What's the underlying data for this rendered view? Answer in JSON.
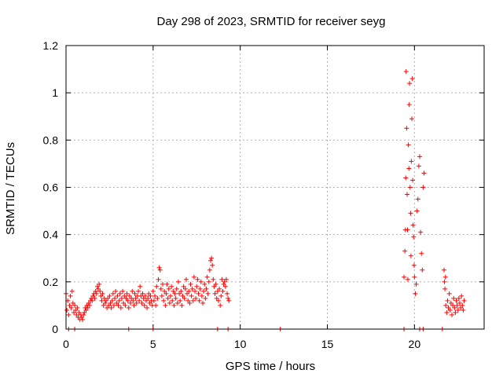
{
  "chart_data": {
    "type": "scatter",
    "title": "Day 298 of 2023, SRMTID for receiver seyg",
    "xlabel": "GPS time / hours",
    "ylabel": "SRMTID / TECUs",
    "xlim": [
      0,
      24
    ],
    "ylim": [
      0,
      1.2
    ],
    "x_ticks": [
      0,
      5,
      10,
      15,
      20
    ],
    "x_tick_labels": [
      "0",
      "5",
      "10",
      "15",
      "20"
    ],
    "y_ticks": [
      0,
      0.2,
      0.4,
      0.6,
      0.8,
      1.0,
      1.2
    ],
    "y_tick_labels": [
      "0",
      "0.2",
      "0.4",
      "0.6",
      "0.8",
      "1",
      "1.2"
    ],
    "grid": true,
    "marker": "+",
    "color": "#ff0000",
    "series": [
      {
        "name": "SRMTID",
        "points": [
          [
            0.0,
            0.15
          ],
          [
            0.05,
            0.08
          ],
          [
            0.1,
            0.12
          ],
          [
            0.15,
            0.06
          ],
          [
            0.2,
            0.1
          ],
          [
            0.25,
            0.14
          ],
          [
            0.3,
            0.09
          ],
          [
            0.35,
            0.16
          ],
          [
            0.4,
            0.11
          ],
          [
            0.45,
            0.07
          ],
          [
            0.5,
            0.1
          ],
          [
            0.55,
            0.08
          ],
          [
            0.6,
            0.06
          ],
          [
            0.65,
            0.09
          ],
          [
            0.7,
            0.05
          ],
          [
            0.75,
            0.07
          ],
          [
            0.8,
            0.04
          ],
          [
            0.85,
            0.06
          ],
          [
            0.9,
            0.05
          ],
          [
            0.95,
            0.04
          ],
          [
            1.0,
            0.06
          ],
          [
            1.05,
            0.07
          ],
          [
            1.1,
            0.09
          ],
          [
            1.15,
            0.08
          ],
          [
            1.2,
            0.1
          ],
          [
            1.25,
            0.09
          ],
          [
            1.3,
            0.11
          ],
          [
            1.35,
            0.1
          ],
          [
            1.4,
            0.12
          ],
          [
            1.45,
            0.13
          ],
          [
            1.5,
            0.12
          ],
          [
            1.55,
            0.14
          ],
          [
            1.6,
            0.15
          ],
          [
            1.65,
            0.13
          ],
          [
            1.7,
            0.16
          ],
          [
            1.75,
            0.15
          ],
          [
            1.8,
            0.18
          ],
          [
            1.85,
            0.17
          ],
          [
            1.9,
            0.19
          ],
          [
            1.95,
            0.16
          ],
          [
            2.0,
            0.14
          ],
          [
            2.05,
            0.12
          ],
          [
            2.1,
            0.15
          ],
          [
            2.15,
            0.1
          ],
          [
            2.2,
            0.13
          ],
          [
            2.25,
            0.11
          ],
          [
            2.3,
            0.12
          ],
          [
            2.35,
            0.09
          ],
          [
            2.4,
            0.13
          ],
          [
            2.45,
            0.1
          ],
          [
            2.5,
            0.14
          ],
          [
            2.55,
            0.11
          ],
          [
            2.6,
            0.09
          ],
          [
            2.65,
            0.12
          ],
          [
            2.7,
            0.15
          ],
          [
            2.75,
            0.1
          ],
          [
            2.8,
            0.13
          ],
          [
            2.85,
            0.16
          ],
          [
            2.9,
            0.11
          ],
          [
            2.95,
            0.14
          ],
          [
            3.0,
            0.1
          ],
          [
            3.05,
            0.12
          ],
          [
            3.1,
            0.15
          ],
          [
            3.15,
            0.09
          ],
          [
            3.2,
            0.13
          ],
          [
            3.25,
            0.16
          ],
          [
            3.3,
            0.11
          ],
          [
            3.35,
            0.14
          ],
          [
            3.4,
            0.1
          ],
          [
            3.45,
            0.13
          ],
          [
            3.5,
            0.15
          ],
          [
            3.55,
            0.12
          ],
          [
            3.6,
            0.09
          ],
          [
            3.65,
            0.14
          ],
          [
            3.7,
            0.11
          ],
          [
            3.75,
            0.13
          ],
          [
            3.8,
            0.16
          ],
          [
            3.85,
            0.12
          ],
          [
            3.9,
            0.1
          ],
          [
            3.95,
            0.15
          ],
          [
            4.0,
            0.13
          ],
          [
            4.05,
            0.11
          ],
          [
            4.1,
            0.14
          ],
          [
            4.15,
            0.16
          ],
          [
            4.2,
            0.12
          ],
          [
            4.25,
            0.18
          ],
          [
            4.3,
            0.14
          ],
          [
            4.35,
            0.11
          ],
          [
            4.4,
            0.15
          ],
          [
            4.45,
            0.13
          ],
          [
            4.5,
            0.1
          ],
          [
            4.55,
            0.14
          ],
          [
            4.6,
            0.12
          ],
          [
            4.65,
            0.09
          ],
          [
            4.7,
            0.13
          ],
          [
            4.75,
            0.15
          ],
          [
            4.8,
            0.11
          ],
          [
            4.85,
            0.14
          ],
          [
            4.9,
            0.12
          ],
          [
            4.95,
            0.1
          ],
          [
            5.0,
            0.16
          ],
          [
            5.05,
            0.12
          ],
          [
            5.1,
            0.14
          ],
          [
            5.15,
            0.1
          ],
          [
            5.2,
            0.18
          ],
          [
            5.25,
            0.13
          ],
          [
            5.3,
            0.21
          ],
          [
            5.35,
            0.26
          ],
          [
            5.4,
            0.25
          ],
          [
            5.45,
            0.17
          ],
          [
            5.5,
            0.14
          ],
          [
            5.55,
            0.19
          ],
          [
            5.6,
            0.12
          ],
          [
            5.65,
            0.16
          ],
          [
            5.7,
            0.1
          ],
          [
            5.75,
            0.15
          ],
          [
            5.8,
            0.19
          ],
          [
            5.85,
            0.13
          ],
          [
            5.9,
            0.17
          ],
          [
            5.95,
            0.11
          ],
          [
            6.0,
            0.14
          ],
          [
            6.05,
            0.18
          ],
          [
            6.1,
            0.12
          ],
          [
            6.15,
            0.16
          ],
          [
            6.2,
            0.1
          ],
          [
            6.25,
            0.15
          ],
          [
            6.3,
            0.13
          ],
          [
            6.35,
            0.17
          ],
          [
            6.4,
            0.11
          ],
          [
            6.45,
            0.2
          ],
          [
            6.5,
            0.15
          ],
          [
            6.55,
            0.12
          ],
          [
            6.6,
            0.16
          ],
          [
            6.65,
            0.1
          ],
          [
            6.7,
            0.14
          ],
          [
            6.75,
            0.18
          ],
          [
            6.8,
            0.13
          ],
          [
            6.85,
            0.17
          ],
          [
            6.9,
            0.21
          ],
          [
            6.95,
            0.15
          ],
          [
            7.0,
            0.12
          ],
          [
            7.05,
            0.16
          ],
          [
            7.1,
            0.11
          ],
          [
            7.15,
            0.19
          ],
          [
            7.2,
            0.14
          ],
          [
            7.25,
            0.17
          ],
          [
            7.3,
            0.12
          ],
          [
            7.35,
            0.22
          ],
          [
            7.4,
            0.16
          ],
          [
            7.45,
            0.13
          ],
          [
            7.5,
            0.18
          ],
          [
            7.55,
            0.21
          ],
          [
            7.6,
            0.15
          ],
          [
            7.65,
            0.12
          ],
          [
            7.7,
            0.17
          ],
          [
            7.75,
            0.2
          ],
          [
            7.8,
            0.14
          ],
          [
            7.85,
            0.11
          ],
          [
            7.9,
            0.16
          ],
          [
            7.95,
            0.19
          ],
          [
            8.0,
            0.13
          ],
          [
            8.05,
            0.17
          ],
          [
            8.1,
            0.22
          ],
          [
            8.15,
            0.15
          ],
          [
            8.2,
            0.2
          ],
          [
            8.25,
            0.25
          ],
          [
            8.3,
            0.29
          ],
          [
            8.35,
            0.3
          ],
          [
            8.4,
            0.27
          ],
          [
            8.45,
            0.21
          ],
          [
            8.5,
            0.18
          ],
          [
            8.55,
            0.15
          ],
          [
            8.6,
            0.19
          ],
          [
            8.65,
            0.13
          ],
          [
            8.7,
            0.16
          ],
          [
            8.75,
            0.12
          ],
          [
            8.8,
            0.17
          ],
          [
            8.85,
            0.1
          ],
          [
            8.9,
            0.14
          ],
          [
            8.95,
            0.21
          ],
          [
            9.0,
            0.16
          ],
          [
            9.05,
            0.19
          ],
          [
            9.1,
            0.2
          ],
          [
            9.15,
            0.18
          ],
          [
            9.2,
            0.21
          ],
          [
            9.25,
            0.15
          ],
          [
            9.3,
            0.13
          ],
          [
            9.35,
            0.12
          ],
          [
            19.4,
            0.22
          ],
          [
            19.45,
            0.33
          ],
          [
            19.48,
            0.42
          ],
          [
            19.5,
            0.64
          ],
          [
            19.52,
            1.09
          ],
          [
            19.55,
            0.85
          ],
          [
            19.58,
            0.57
          ],
          [
            19.6,
            0.42
          ],
          [
            19.62,
            0.21
          ],
          [
            19.65,
            0.78
          ],
          [
            19.68,
            0.68
          ],
          [
            19.7,
            0.95
          ],
          [
            19.72,
            1.04
          ],
          [
            19.75,
            0.6
          ],
          [
            19.78,
            0.49
          ],
          [
            19.8,
            0.31
          ],
          [
            19.82,
            0.71
          ],
          [
            19.85,
            0.89
          ],
          [
            19.88,
            1.06
          ],
          [
            19.9,
            0.63
          ],
          [
            19.92,
            0.44
          ],
          [
            19.95,
            0.39
          ],
          [
            19.98,
            0.27
          ],
          [
            20.0,
            0.22
          ],
          [
            20.05,
            0.15
          ],
          [
            20.1,
            0.19
          ],
          [
            20.15,
            0.5
          ],
          [
            20.2,
            0.55
          ],
          [
            20.25,
            0.69
          ],
          [
            20.3,
            0.73
          ],
          [
            20.35,
            0.41
          ],
          [
            20.4,
            0.32
          ],
          [
            20.45,
            0.25
          ],
          [
            20.5,
            0.6
          ],
          [
            20.55,
            0.66
          ],
          [
            21.7,
            0.25
          ],
          [
            21.72,
            0.2
          ],
          [
            21.75,
            0.17
          ],
          [
            21.78,
            0.22
          ],
          [
            21.8,
            0.1
          ],
          [
            21.85,
            0.07
          ],
          [
            21.9,
            0.12
          ],
          [
            21.95,
            0.09
          ],
          [
            22.0,
            0.15
          ],
          [
            22.05,
            0.08
          ],
          [
            22.1,
            0.11
          ],
          [
            22.15,
            0.06
          ],
          [
            22.2,
            0.1
          ],
          [
            22.25,
            0.13
          ],
          [
            22.3,
            0.09
          ],
          [
            22.35,
            0.07
          ],
          [
            22.4,
            0.12
          ],
          [
            22.45,
            0.1
          ],
          [
            22.5,
            0.08
          ],
          [
            22.55,
            0.13
          ],
          [
            22.6,
            0.11
          ],
          [
            22.65,
            0.09
          ],
          [
            22.7,
            0.14
          ],
          [
            22.75,
            0.1
          ],
          [
            22.8,
            0.08
          ],
          [
            22.85,
            0.12
          ]
        ]
      }
    ],
    "zero_points_x": [
      0.15,
      0.5,
      3.6,
      5.0,
      8.7,
      9.3,
      12.3,
      19.4,
      20.3,
      20.5,
      21.6
    ]
  }
}
